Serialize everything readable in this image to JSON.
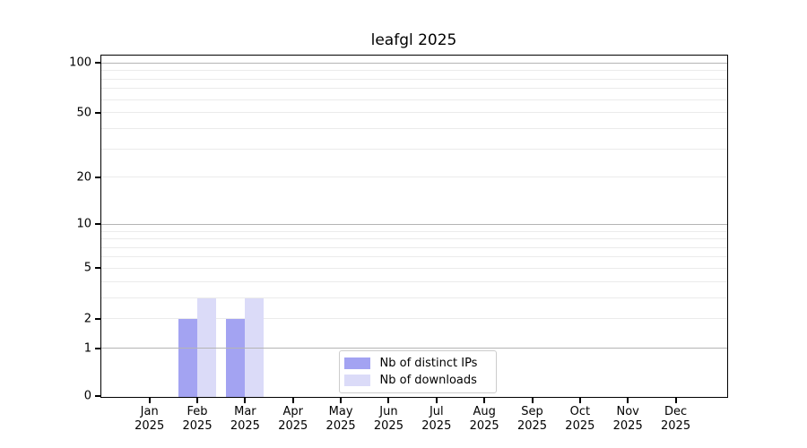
{
  "chart": {
    "background": "#ffffff",
    "spine_color": "#000000",
    "grid_major_color": "#b4b4b4",
    "grid_minor_color": "#ebebeb",
    "legend_border_color": "#cccccc"
  },
  "chart_data": {
    "type": "bar",
    "title": "leafgl 2025",
    "xlabel": "",
    "ylabel": "",
    "categories": [
      "Jan 2025",
      "Feb 2025",
      "Mar 2025",
      "Apr 2025",
      "May 2025",
      "Jun 2025",
      "Jul 2025",
      "Aug 2025",
      "Sep 2025",
      "Oct 2025",
      "Nov 2025",
      "Dec 2025"
    ],
    "x_tick_months": [
      "Jan",
      "Feb",
      "Mar",
      "Apr",
      "May",
      "Jun",
      "Jul",
      "Aug",
      "Sep",
      "Oct",
      "Nov",
      "Dec"
    ],
    "x_tick_year": "2025",
    "series": [
      {
        "name": "Nb of distinct IPs",
        "color": "#a3a3f2",
        "values": [
          0,
          2,
          2,
          0,
          0,
          0,
          0,
          0,
          0,
          0,
          0,
          0
        ]
      },
      {
        "name": "Nb of downloads",
        "color": "#dbdbf8",
        "values": [
          0,
          3,
          3,
          0,
          0,
          0,
          0,
          0,
          0,
          0,
          0,
          0
        ]
      }
    ],
    "yscale": "log1p",
    "ylim": [
      0,
      110
    ],
    "y_tick_values": [
      0,
      1,
      2,
      5,
      10,
      20,
      50,
      100
    ],
    "y_tick_labels": [
      "0",
      "1",
      "2",
      "5",
      "10",
      "20",
      "50",
      "100"
    ],
    "major_grid_values": [
      1,
      10,
      100
    ],
    "minor_grid_values": [
      2,
      3,
      4,
      5,
      6,
      7,
      8,
      9,
      20,
      30,
      40,
      50,
      60,
      70,
      80,
      90
    ],
    "grid": "horizontal",
    "legend_position": "lower center"
  }
}
